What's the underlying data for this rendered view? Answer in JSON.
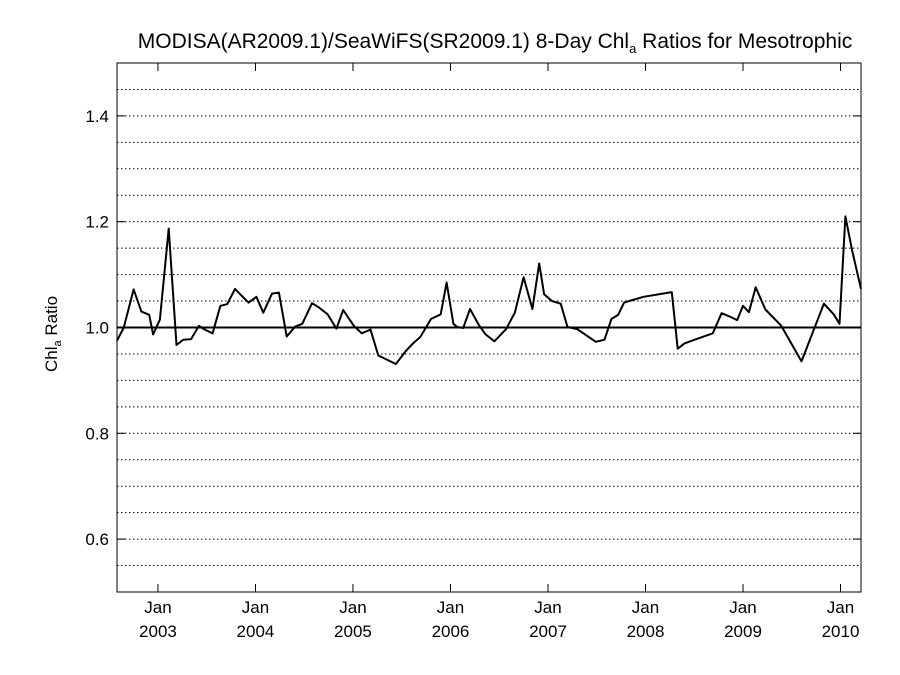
{
  "chart_data": {
    "type": "line",
    "title": {
      "prefix": "MODISA(AR2009.1)/SeaWiFS(SR2009.1) 8-Day Chl",
      "subscript": "a",
      "suffix": " Ratios for Mesotrophic"
    },
    "ylabel": {
      "prefix": "Chl",
      "subscript": "a",
      "suffix": " Ratio"
    },
    "xlabel": "",
    "ylim": [
      0.5,
      1.5
    ],
    "xlim": [
      2002.58,
      2010.21
    ],
    "y_ticks": [
      {
        "value": 0.6,
        "label": "0.6"
      },
      {
        "value": 0.8,
        "label": "0.8"
      },
      {
        "value": 1.0,
        "label": "1.0"
      },
      {
        "value": 1.2,
        "label": "1.2"
      },
      {
        "value": 1.4,
        "label": "1.4"
      }
    ],
    "x_ticks": [
      {
        "value": 2003.0,
        "month": "Jan",
        "year": "2003"
      },
      {
        "value": 2004.0,
        "month": "Jan",
        "year": "2004"
      },
      {
        "value": 2005.0,
        "month": "Jan",
        "year": "2005"
      },
      {
        "value": 2006.0,
        "month": "Jan",
        "year": "2006"
      },
      {
        "value": 2007.0,
        "month": "Jan",
        "year": "2007"
      },
      {
        "value": 2008.0,
        "month": "Jan",
        "year": "2008"
      },
      {
        "value": 2009.0,
        "month": "Jan",
        "year": "2009"
      },
      {
        "value": 2010.0,
        "month": "Jan",
        "year": "2010"
      }
    ],
    "grid": "dotted horizontal lines every 0.05",
    "reference_line": 1.0,
    "series": [
      {
        "color": "#000000",
        "x": [
          2002.58,
          2002.65,
          2002.75,
          2002.83,
          2002.91,
          2002.95,
          2003.02,
          2003.11,
          2003.19,
          2003.26,
          2003.34,
          2003.42,
          2003.48,
          2003.56,
          2003.64,
          2003.71,
          2003.79,
          2003.88,
          2003.93,
          2004.01,
          2004.08,
          2004.17,
          2004.24,
          2004.32,
          2004.41,
          2004.48,
          2004.58,
          2004.65,
          2004.74,
          2004.83,
          2004.9,
          2005.01,
          2005.09,
          2005.18,
          2005.26,
          2005.44,
          2005.54,
          2005.61,
          2005.69,
          2005.8,
          2005.9,
          2005.96,
          2006.03,
          2006.07,
          2006.13,
          2006.2,
          2006.29,
          2006.36,
          2006.45,
          2006.57,
          2006.66,
          2006.75,
          2006.84,
          2006.91,
          2006.96,
          2007.04,
          2007.13,
          2007.2,
          2007.3,
          2007.49,
          2007.58,
          2007.65,
          2007.72,
          2007.78,
          2007.85,
          2007.98,
          2008.27,
          2008.33,
          2008.4,
          2008.49,
          2008.69,
          2008.78,
          2008.86,
          2008.94,
          2009.0,
          2009.06,
          2009.13,
          2009.23,
          2009.39,
          2009.6,
          2009.83,
          2009.93,
          2009.99,
          2010.05,
          2010.12,
          2010.21
        ],
        "y": [
          0.975,
          1.0,
          1.072,
          1.03,
          1.024,
          0.987,
          1.015,
          1.187,
          0.967,
          0.977,
          0.978,
          1.003,
          0.996,
          0.989,
          1.041,
          1.044,
          1.073,
          1.056,
          1.047,
          1.058,
          1.028,
          1.064,
          1.066,
          0.983,
          1.002,
          1.007,
          1.046,
          1.038,
          1.025,
          0.998,
          1.033,
          1.003,
          0.989,
          0.996,
          0.947,
          0.931,
          0.955,
          0.969,
          0.982,
          1.016,
          1.025,
          1.085,
          1.007,
          1.001,
          0.999,
          1.035,
          1.005,
          0.987,
          0.974,
          0.997,
          1.028,
          1.095,
          1.035,
          1.121,
          1.063,
          1.05,
          1.045,
          1.001,
          0.997,
          0.973,
          0.977,
          1.016,
          1.024,
          1.047,
          1.051,
          1.058,
          1.067,
          0.96,
          0.97,
          0.976,
          0.989,
          1.027,
          1.021,
          1.014,
          1.041,
          1.029,
          1.076,
          1.034,
          1.004,
          0.936,
          1.045,
          1.025,
          1.007,
          1.21,
          1.145,
          1.073
        ]
      }
    ]
  }
}
